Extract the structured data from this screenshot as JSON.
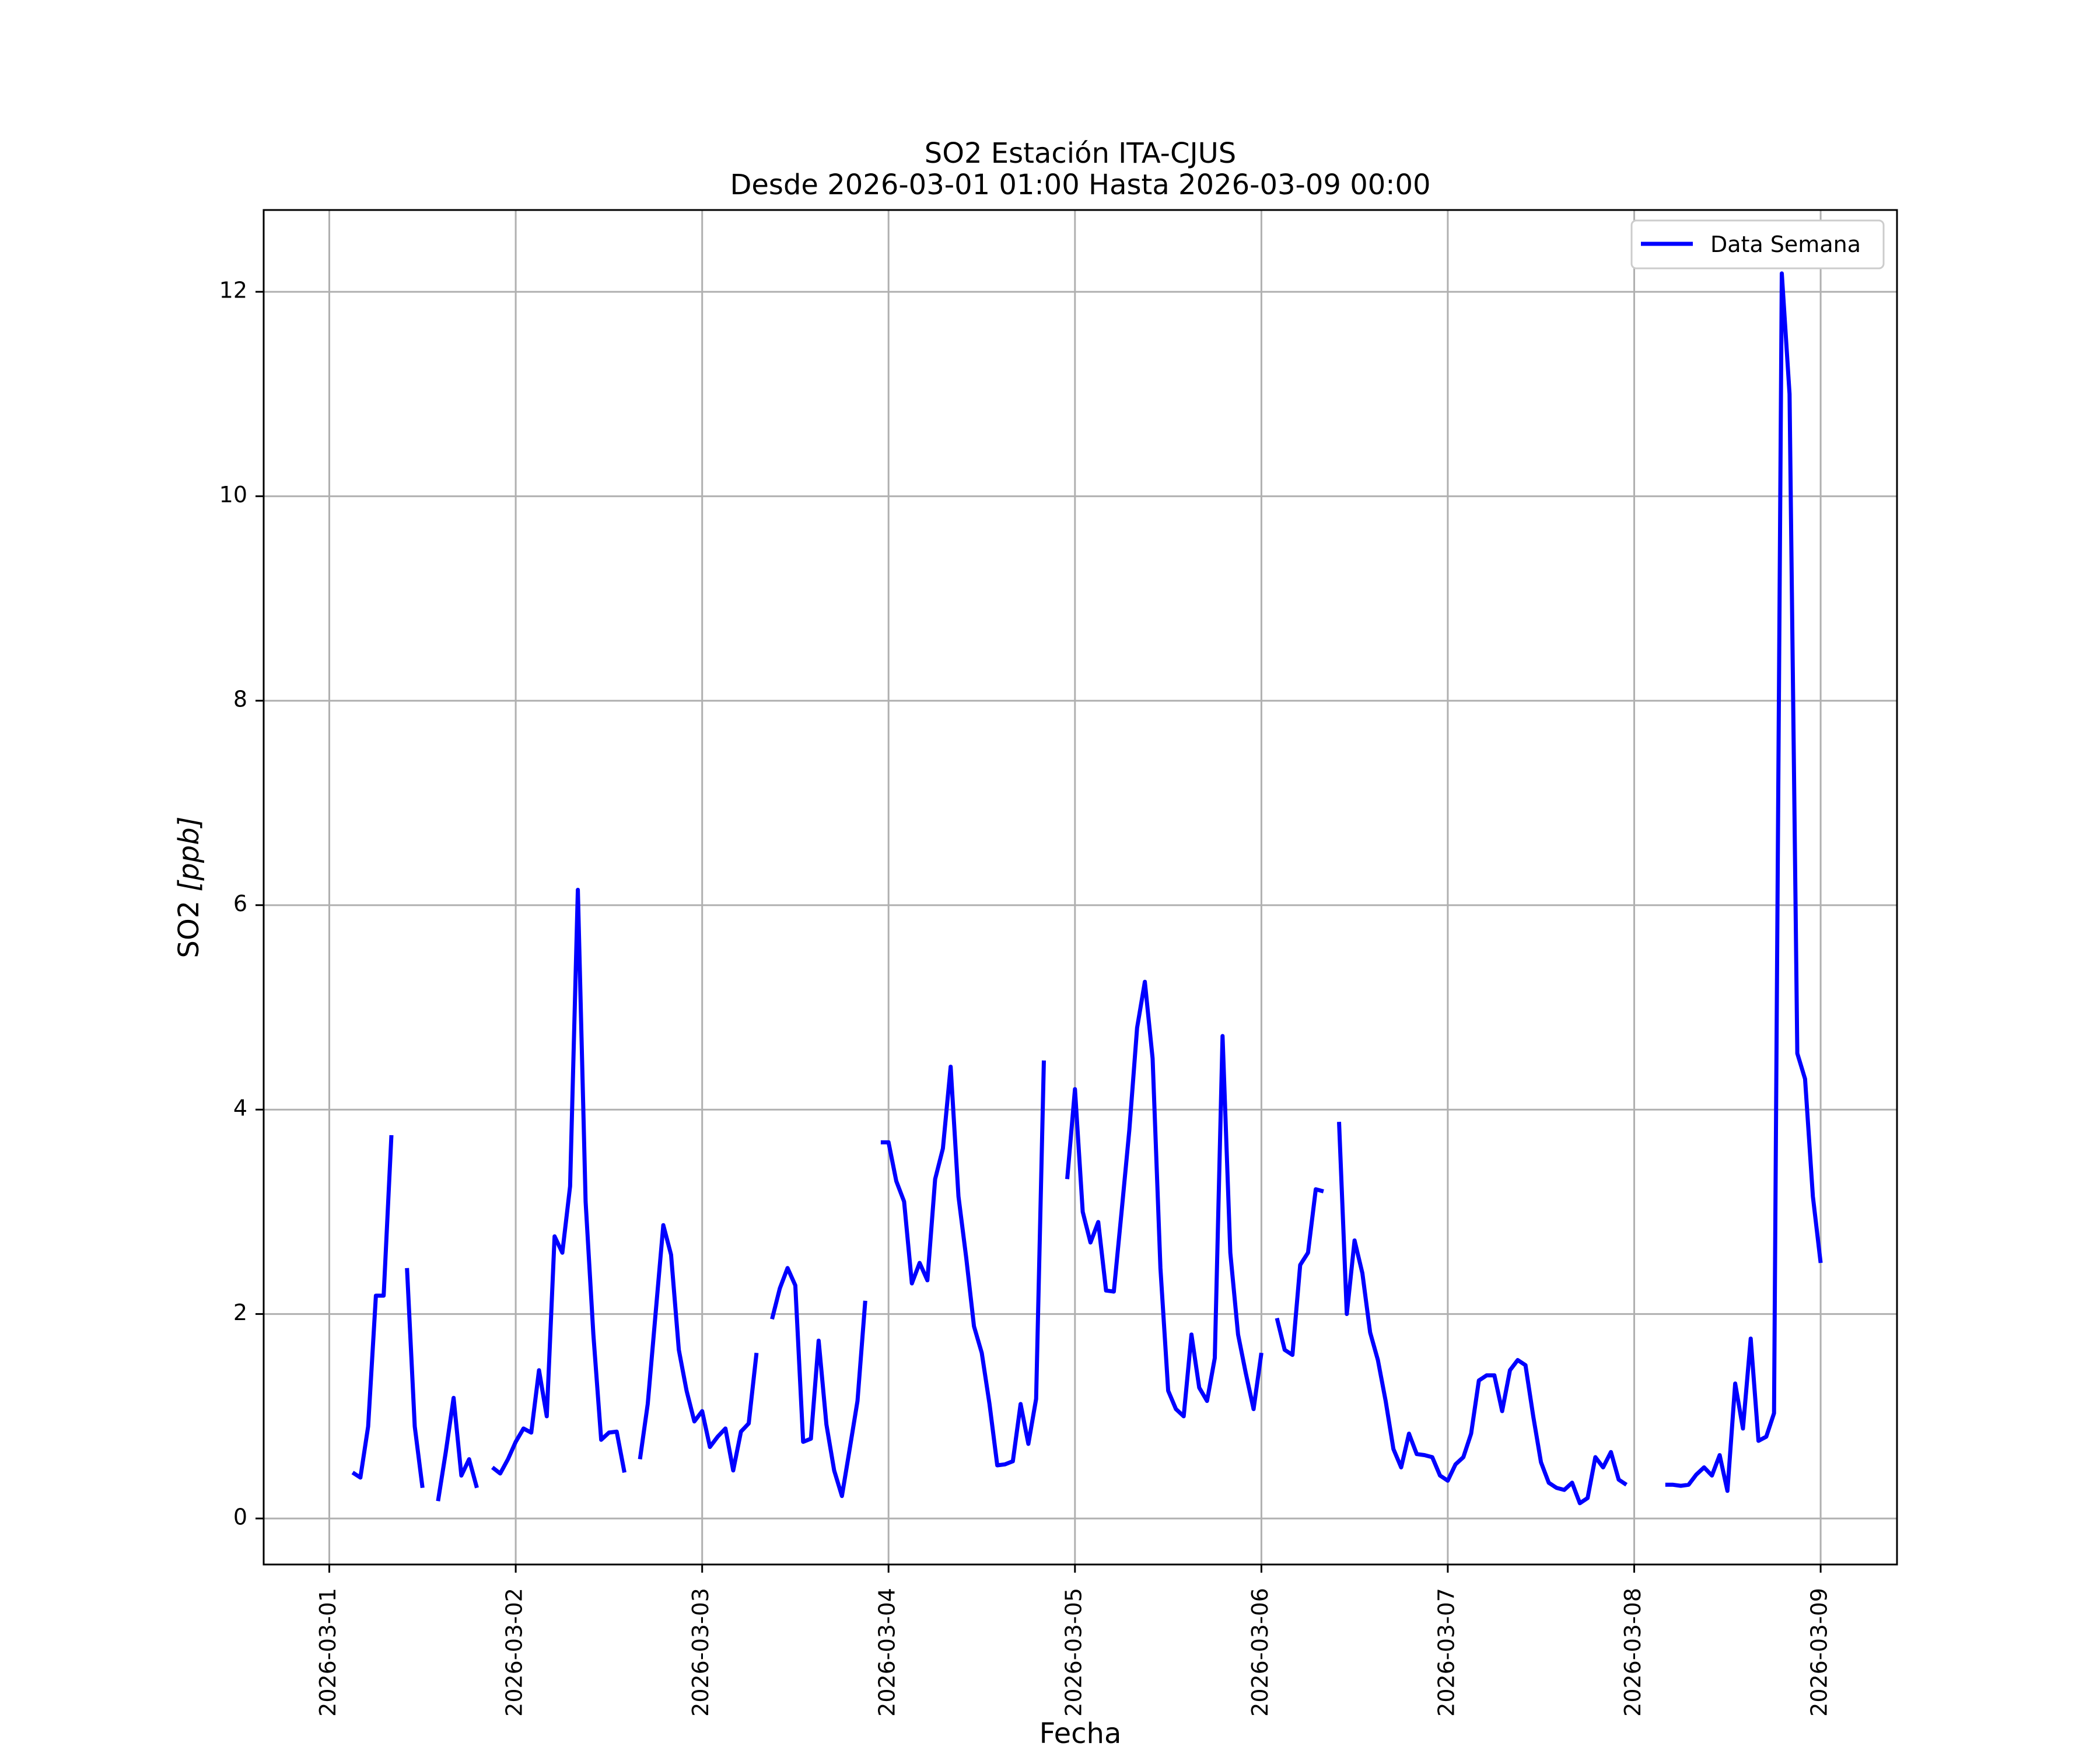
{
  "chart_data": {
    "type": "line",
    "title": "SO2 Estación ITA-CJUS",
    "subtitle": "Desde 2026-03-01 01:00 Hasta 2026-03-09 00:00",
    "xlabel": "Fecha",
    "ylabel_main": "SO2 ",
    "ylabel_unit": "[ppb]",
    "xlim": [
      "2026-02-28T15:33",
      "2026-03-09T09:50"
    ],
    "ylim": [
      -0.45,
      12.8
    ],
    "grid": true,
    "legend_position": "top-right",
    "x_ticks": [
      "2026-03-01",
      "2026-03-02",
      "2026-03-03",
      "2026-03-04",
      "2026-03-05",
      "2026-03-06",
      "2026-03-07",
      "2026-03-08",
      "2026-03-09"
    ],
    "y_ticks": [
      0,
      2,
      4,
      6,
      8,
      10,
      12
    ],
    "series": [
      {
        "name": "Data Semana",
        "color": "#0000ff",
        "segments": [
          [
            [
              "2026-03-01T03:00",
              0.45
            ],
            [
              "2026-03-01T04:00",
              0.4
            ],
            [
              "2026-03-01T05:00",
              0.9
            ],
            [
              "2026-03-01T06:00",
              2.18
            ],
            [
              "2026-03-01T07:00",
              2.18
            ],
            [
              "2026-03-01T08:00",
              3.75
            ]
          ],
          [
            [
              "2026-03-01T10:00",
              2.45
            ],
            [
              "2026-03-01T11:00",
              0.9
            ],
            [
              "2026-03-01T12:00",
              0.3
            ]
          ],
          [
            [
              "2026-03-01T14:00",
              0.17
            ],
            [
              "2026-03-01T15:00",
              0.65
            ],
            [
              "2026-03-01T16:00",
              1.18
            ],
            [
              "2026-03-01T17:00",
              0.42
            ],
            [
              "2026-03-01T18:00",
              0.58
            ],
            [
              "2026-03-01T19:00",
              0.3
            ]
          ],
          [
            [
              "2026-03-01T21:00",
              0.5
            ],
            [
              "2026-03-01T22:00",
              0.44
            ],
            [
              "2026-03-01T23:00",
              0.58
            ],
            [
              "2026-03-02T00:00",
              0.75
            ],
            [
              "2026-03-02T01:00",
              0.88
            ],
            [
              "2026-03-02T02:00",
              0.84
            ],
            [
              "2026-03-02T03:00",
              1.45
            ],
            [
              "2026-03-02T04:00",
              1.0
            ],
            [
              "2026-03-02T05:00",
              2.76
            ],
            [
              "2026-03-02T06:00",
              2.6
            ],
            [
              "2026-03-02T07:00",
              3.25
            ],
            [
              "2026-03-02T08:00",
              6.15
            ],
            [
              "2026-03-02T09:00",
              3.1
            ],
            [
              "2026-03-02T10:00",
              1.8
            ],
            [
              "2026-03-02T11:00",
              0.77
            ],
            [
              "2026-03-02T12:00",
              0.84
            ],
            [
              "2026-03-02T13:00",
              0.85
            ],
            [
              "2026-03-02T14:00",
              0.45
            ]
          ],
          [
            [
              "2026-03-02T16:00",
              0.58
            ],
            [
              "2026-03-02T17:00",
              1.12
            ],
            [
              "2026-03-02T18:00",
              2.0
            ],
            [
              "2026-03-02T19:00",
              2.87
            ],
            [
              "2026-03-02T20:00",
              2.58
            ],
            [
              "2026-03-02T21:00",
              1.65
            ],
            [
              "2026-03-02T22:00",
              1.25
            ],
            [
              "2026-03-02T23:00",
              0.95
            ],
            [
              "2026-03-03T00:00",
              1.05
            ],
            [
              "2026-03-03T01:00",
              0.7
            ],
            [
              "2026-03-03T02:00",
              0.8
            ],
            [
              "2026-03-03T03:00",
              0.88
            ],
            [
              "2026-03-03T04:00",
              0.47
            ],
            [
              "2026-03-03T05:00",
              0.85
            ],
            [
              "2026-03-03T06:00",
              0.93
            ],
            [
              "2026-03-03T07:00",
              1.62
            ]
          ],
          [
            [
              "2026-03-03T09:00",
              1.95
            ],
            [
              "2026-03-03T10:00",
              2.25
            ],
            [
              "2026-03-03T11:00",
              2.45
            ],
            [
              "2026-03-03T12:00",
              2.28
            ],
            [
              "2026-03-03T13:00",
              0.75
            ],
            [
              "2026-03-03T14:00",
              0.78
            ],
            [
              "2026-03-03T15:00",
              1.74
            ],
            [
              "2026-03-03T16:00",
              0.92
            ],
            [
              "2026-03-03T17:00",
              0.47
            ],
            [
              "2026-03-03T18:00",
              0.22
            ],
            [
              "2026-03-03T19:00",
              0.68
            ],
            [
              "2026-03-03T20:00",
              1.15
            ],
            [
              "2026-03-03T21:00",
              2.13
            ]
          ],
          [
            [
              "2026-03-03T23:00",
              3.68
            ],
            [
              "2026-03-04T00:00",
              3.68
            ],
            [
              "2026-03-04T01:00",
              3.3
            ],
            [
              "2026-03-04T02:00",
              3.1
            ],
            [
              "2026-03-04T03:00",
              2.3
            ],
            [
              "2026-03-04T04:00",
              2.5
            ],
            [
              "2026-03-04T05:00",
              2.33
            ],
            [
              "2026-03-04T06:00",
              3.32
            ],
            [
              "2026-03-04T07:00",
              3.62
            ],
            [
              "2026-03-04T08:00",
              4.42
            ],
            [
              "2026-03-04T09:00",
              3.15
            ],
            [
              "2026-03-04T10:00",
              2.55
            ],
            [
              "2026-03-04T11:00",
              1.88
            ],
            [
              "2026-03-04T12:00",
              1.62
            ],
            [
              "2026-03-04T13:00",
              1.12
            ],
            [
              "2026-03-04T14:00",
              0.52
            ],
            [
              "2026-03-04T15:00",
              0.53
            ],
            [
              "2026-03-04T16:00",
              0.56
            ],
            [
              "2026-03-04T17:00",
              1.12
            ],
            [
              "2026-03-04T18:00",
              0.73
            ],
            [
              "2026-03-04T19:00",
              1.17
            ],
            [
              "2026-03-04T20:00",
              4.48
            ]
          ],
          [
            [
              "2026-03-04T23:00",
              3.32
            ],
            [
              "2026-03-05T00:00",
              4.2
            ],
            [
              "2026-03-05T01:00",
              3.0
            ],
            [
              "2026-03-05T02:00",
              2.7
            ],
            [
              "2026-03-05T03:00",
              2.9
            ],
            [
              "2026-03-05T04:00",
              2.23
            ],
            [
              "2026-03-05T05:00",
              2.22
            ],
            [
              "2026-03-05T06:00",
              3.0
            ],
            [
              "2026-03-05T07:00",
              3.8
            ],
            [
              "2026-03-05T08:00",
              4.8
            ],
            [
              "2026-03-05T09:00",
              5.25
            ],
            [
              "2026-03-05T10:00",
              4.5
            ],
            [
              "2026-03-05T11:00",
              2.45
            ],
            [
              "2026-03-05T12:00",
              1.25
            ],
            [
              "2026-03-05T13:00",
              1.07
            ],
            [
              "2026-03-05T14:00",
              1.0
            ],
            [
              "2026-03-05T15:00",
              1.8
            ],
            [
              "2026-03-05T16:00",
              1.28
            ],
            [
              "2026-03-05T17:00",
              1.15
            ],
            [
              "2026-03-05T18:00",
              1.57
            ],
            [
              "2026-03-05T19:00",
              4.72
            ],
            [
              "2026-03-05T20:00",
              2.6
            ],
            [
              "2026-03-05T21:00",
              1.8
            ],
            [
              "2026-03-05T22:00",
              1.42
            ],
            [
              "2026-03-05T23:00",
              1.07
            ],
            [
              "2026-03-06T00:00",
              1.62
            ]
          ],
          [
            [
              "2026-03-06T02:00",
              1.96
            ],
            [
              "2026-03-06T03:00",
              1.65
            ],
            [
              "2026-03-06T04:00",
              1.6
            ],
            [
              "2026-03-06T05:00",
              2.48
            ],
            [
              "2026-03-06T06:00",
              2.6
            ],
            [
              "2026-03-06T07:00",
              3.22
            ],
            [
              "2026-03-06T08:00",
              3.2
            ]
          ],
          [
            [
              "2026-03-06T10:00",
              3.88
            ],
            [
              "2026-03-06T11:00",
              2.0
            ],
            [
              "2026-03-06T12:00",
              2.72
            ],
            [
              "2026-03-06T13:00",
              2.4
            ],
            [
              "2026-03-06T14:00",
              1.82
            ],
            [
              "2026-03-06T15:00",
              1.55
            ],
            [
              "2026-03-06T16:00",
              1.15
            ],
            [
              "2026-03-06T17:00",
              0.68
            ],
            [
              "2026-03-06T18:00",
              0.5
            ],
            [
              "2026-03-06T19:00",
              0.83
            ],
            [
              "2026-03-06T20:00",
              0.63
            ],
            [
              "2026-03-06T21:00",
              0.62
            ],
            [
              "2026-03-06T22:00",
              0.6
            ],
            [
              "2026-03-06T23:00",
              0.42
            ],
            [
              "2026-03-07T00:00",
              0.37
            ],
            [
              "2026-03-07T01:00",
              0.53
            ],
            [
              "2026-03-07T02:00",
              0.6
            ],
            [
              "2026-03-07T03:00",
              0.83
            ],
            [
              "2026-03-07T04:00",
              1.35
            ],
            [
              "2026-03-07T05:00",
              1.4
            ],
            [
              "2026-03-07T06:00",
              1.4
            ],
            [
              "2026-03-07T07:00",
              1.05
            ],
            [
              "2026-03-07T08:00",
              1.45
            ],
            [
              "2026-03-07T09:00",
              1.55
            ],
            [
              "2026-03-07T10:00",
              1.5
            ],
            [
              "2026-03-07T11:00",
              1.0
            ],
            [
              "2026-03-07T12:00",
              0.55
            ],
            [
              "2026-03-07T13:00",
              0.35
            ],
            [
              "2026-03-07T14:00",
              0.3
            ],
            [
              "2026-03-07T15:00",
              0.28
            ],
            [
              "2026-03-07T16:00",
              0.35
            ],
            [
              "2026-03-07T17:00",
              0.15
            ],
            [
              "2026-03-07T18:00",
              0.2
            ],
            [
              "2026-03-07T19:00",
              0.6
            ],
            [
              "2026-03-07T20:00",
              0.5
            ],
            [
              "2026-03-07T21:00",
              0.65
            ],
            [
              "2026-03-07T22:00",
              0.38
            ],
            [
              "2026-03-07T23:00",
              0.33
            ]
          ],
          [
            [
              "2026-03-08T04:00",
              0.33
            ],
            [
              "2026-03-08T05:00",
              0.33
            ],
            [
              "2026-03-08T06:00",
              0.32
            ],
            [
              "2026-03-08T07:00",
              0.33
            ],
            [
              "2026-03-08T08:00",
              0.43
            ],
            [
              "2026-03-08T09:00",
              0.5
            ],
            [
              "2026-03-08T10:00",
              0.42
            ],
            [
              "2026-03-08T11:00",
              0.62
            ],
            [
              "2026-03-08T12:00",
              0.27
            ],
            [
              "2026-03-08T13:00",
              1.32
            ],
            [
              "2026-03-08T14:00",
              0.88
            ],
            [
              "2026-03-08T15:00",
              1.76
            ],
            [
              "2026-03-08T16:00",
              0.76
            ],
            [
              "2026-03-08T17:00",
              0.8
            ],
            [
              "2026-03-08T18:00",
              1.03
            ],
            [
              "2026-03-08T19:00",
              12.18
            ],
            [
              "2026-03-08T20:00",
              11.0
            ],
            [
              "2026-03-08T21:00",
              4.55
            ],
            [
              "2026-03-08T22:00",
              4.3
            ],
            [
              "2026-03-08T23:00",
              3.15
            ],
            [
              "2026-03-09T00:00",
              2.5
            ]
          ]
        ]
      }
    ]
  }
}
